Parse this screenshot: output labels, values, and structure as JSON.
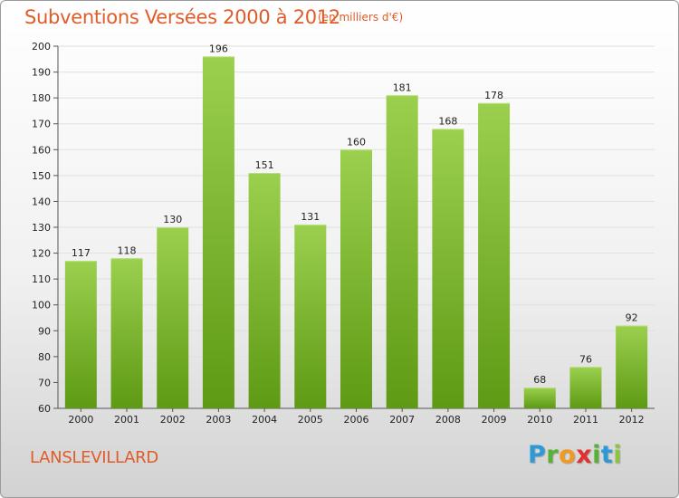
{
  "header": {
    "title": "Subventions Versées 2000 à 2012",
    "subtitle": "(en milliers d'€)"
  },
  "footer": {
    "place": "LANSLEVILLARD",
    "logo_letters": [
      {
        "ch": "P",
        "color": "#2d9ad6"
      },
      {
        "ch": "r",
        "color": "#58b135"
      },
      {
        "ch": "o",
        "color": "#f39a1e"
      },
      {
        "ch": "x",
        "color": "#e0312e"
      },
      {
        "ch": "i",
        "color": "#58b135"
      },
      {
        "ch": "t",
        "color": "#2d9ad6"
      },
      {
        "ch": "i",
        "color": "#8cc63f"
      }
    ]
  },
  "chart_data": {
    "type": "bar",
    "categories": [
      "2000",
      "2001",
      "2002",
      "2003",
      "2004",
      "2005",
      "2006",
      "2007",
      "2008",
      "2009",
      "2010",
      "2011",
      "2012"
    ],
    "values": [
      117,
      118,
      130,
      196,
      151,
      131,
      160,
      181,
      168,
      178,
      68,
      76,
      92
    ],
    "title": "Subventions Versées 2000 à 2012",
    "subtitle": "(en milliers d'€)",
    "xlabel": "",
    "ylabel": "",
    "ylim": [
      60,
      200
    ],
    "yticks": [
      60,
      70,
      80,
      90,
      100,
      110,
      120,
      130,
      140,
      150,
      160,
      170,
      180,
      190,
      200
    ],
    "grid": true,
    "bar_color_top": "#9bd04e",
    "bar_color_bottom": "#5e9a14"
  }
}
